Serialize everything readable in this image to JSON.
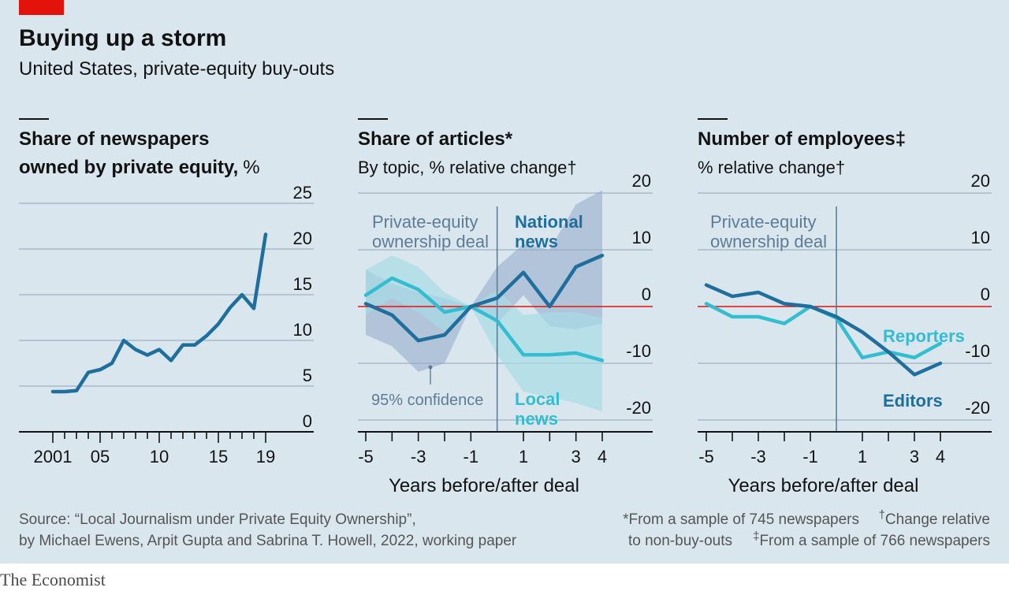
{
  "header": {
    "title": "Buying up a storm",
    "subtitle": "United States, private-equity buy-outs"
  },
  "chart_data": [
    {
      "type": "line",
      "title_line1": "Share of newspapers",
      "title_line2_bold": "owned by private equity,",
      "title_line2_unit": "%",
      "x_tick_labels": [
        "2001",
        "05",
        "10",
        "15",
        "19"
      ],
      "x_tick_values": [
        2001,
        2005,
        2010,
        2015,
        2019
      ],
      "y_tick_labels": [
        "0",
        "5",
        "10",
        "15",
        "20",
        "25"
      ],
      "y_tick_values": [
        0,
        5,
        10,
        15,
        20,
        25
      ],
      "xlim": [
        1999,
        2022
      ],
      "ylim": [
        0,
        25
      ],
      "series": [
        {
          "color": "#1f6e9c",
          "x": [
            2001,
            2002,
            2003,
            2004,
            2005,
            2006,
            2007,
            2008,
            2009,
            2010,
            2011,
            2012,
            2013,
            2014,
            2015,
            2016,
            2017,
            2018,
            2019
          ],
          "values": [
            4.4,
            4.4,
            4.5,
            6.5,
            6.8,
            7.5,
            10.0,
            9.0,
            8.4,
            9.0,
            7.8,
            9.5,
            9.5,
            10.5,
            11.8,
            13.6,
            15.0,
            13.5,
            21.6
          ]
        }
      ]
    },
    {
      "type": "line",
      "title": "Share of articles*",
      "subtitle": "By topic, % relative change†",
      "xlabel": "Years before/after deal",
      "x_tick_labels": [
        "-5",
        "-3",
        "-1",
        "1",
        "3",
        "4"
      ],
      "x_tick_values": [
        -5,
        -3,
        -1,
        1,
        3,
        4
      ],
      "y_tick_labels": [
        "20",
        "10",
        "0",
        "-10",
        "-20"
      ],
      "y_tick_values": [
        20,
        10,
        0,
        -10,
        -20
      ],
      "xlim": [
        -5,
        4
      ],
      "ylim": [
        -20,
        20
      ],
      "deal_at": 0,
      "annotations": {
        "deal_line1": "Private-equity",
        "deal_line2": "ownership deal",
        "national_line1": "National",
        "national_line2": "news",
        "local_line1": "Local",
        "local_line2": "news",
        "confidence": "95% confidence"
      },
      "series": [
        {
          "name": "National news",
          "color": "#1f6e9c",
          "x": [
            -5,
            -4,
            -3,
            -2,
            -1,
            0,
            1,
            2,
            3,
            4
          ],
          "values": [
            0.5,
            -1.5,
            -6.0,
            -5.0,
            0.0,
            1.5,
            6.0,
            0.0,
            7.0,
            9.0
          ],
          "ci_low": [
            -5,
            -7,
            -11.5,
            -10,
            0,
            -3,
            2,
            -3.5,
            -4,
            -3
          ],
          "ci_high": [
            6.5,
            4,
            2.5,
            1.5,
            0,
            7,
            11,
            10,
            18,
            20.5
          ]
        },
        {
          "name": "Local news",
          "color": "#34bdd0",
          "x": [
            -5,
            -4,
            -3,
            -2,
            -1,
            0,
            1,
            2,
            3,
            4
          ],
          "values": [
            2.0,
            5.0,
            3.0,
            -1.0,
            0.0,
            -2.5,
            -8.5,
            -8.5,
            -8.2,
            -9.5
          ],
          "ci_low": [
            -1.5,
            1.5,
            -1,
            -4.5,
            0,
            -8.5,
            -15,
            -16,
            -17,
            -18.5
          ],
          "ci_high": [
            6.5,
            9,
            7,
            2.5,
            0,
            3,
            -1.5,
            -1,
            -1,
            -2
          ]
        }
      ]
    },
    {
      "type": "line",
      "title": "Number of employees‡",
      "subtitle": "% relative change†",
      "xlabel": "Years before/after deal",
      "x_tick_labels": [
        "-5",
        "-3",
        "-1",
        "1",
        "3",
        "4"
      ],
      "x_tick_values": [
        -5,
        -3,
        -1,
        1,
        3,
        4
      ],
      "y_tick_labels": [
        "20",
        "10",
        "0",
        "-10",
        "-20"
      ],
      "y_tick_values": [
        20,
        10,
        0,
        -10,
        -20
      ],
      "xlim": [
        -5,
        4
      ],
      "ylim": [
        -20,
        20
      ],
      "deal_at": 0,
      "annotations": {
        "deal_line1": "Private-equity",
        "deal_line2": "ownership deal",
        "reporters": "Reporters",
        "editors": "Editors"
      },
      "series": [
        {
          "name": "Editors",
          "color": "#1f6e9c",
          "x": [
            -5,
            -4,
            -3,
            -2,
            -1,
            0,
            1,
            2,
            3,
            4
          ],
          "values": [
            3.8,
            1.8,
            2.5,
            0.5,
            0.0,
            -1.8,
            -4.5,
            -8.0,
            -12.0,
            -10.0
          ],
          "ci_low": [],
          "ci_high": []
        },
        {
          "name": "Reporters",
          "color": "#34bdd0",
          "x": [
            -5,
            -4,
            -3,
            -2,
            -1,
            0,
            1,
            2,
            3,
            4
          ],
          "values": [
            0.5,
            -1.8,
            -1.8,
            -3.0,
            0.0,
            -2.0,
            -9.0,
            -8.0,
            -9.0,
            -6.5
          ],
          "ci_low": [],
          "ci_high": []
        }
      ]
    }
  ],
  "footer": {
    "source_line1": "Source: “Local Journalism under Private Equity Ownership”,",
    "source_line2": "by Michael Ewens, Arpit Gupta and Sabrina T. Howell, 2022, working paper",
    "note1": "*From a sample of 745 newspapers",
    "note2_dagger": "†",
    "note2_text": "Change relative",
    "note3": "to non-buy-outs",
    "note4_ddagger": "‡",
    "note4_text": "From a sample of 766 newspapers",
    "brand": "The Economist"
  },
  "colors": {
    "background": "#d9e6ee",
    "dark_blue": "#1f6e9c",
    "light_blue": "#34bdd0",
    "band_dark": "#8fa8c8",
    "band_light": "#a6dbe5",
    "deal_line": "#5e7c96",
    "zero_line": "#e3120b",
    "grid": "#a7b9c6",
    "accent_red": "#e3120b"
  }
}
